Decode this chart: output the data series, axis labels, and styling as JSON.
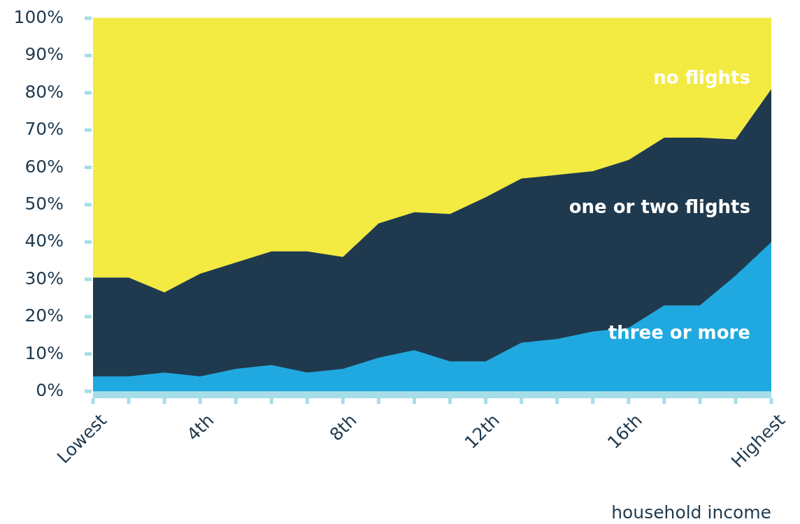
{
  "chart_data": {
    "type": "area",
    "stacked": true,
    "xlabel": "household income",
    "categories": [
      "Lowest",
      null,
      null,
      "4th",
      null,
      null,
      null,
      "8th",
      null,
      null,
      null,
      "12th",
      null,
      null,
      null,
      "16th",
      null,
      null,
      null,
      "Highest"
    ],
    "series": [
      {
        "name": "three or more",
        "color": "#1fa9e0",
        "values": [
          4,
          4,
          5,
          4,
          6,
          7,
          5,
          6,
          9,
          11,
          8,
          8,
          13,
          14,
          16,
          17,
          23,
          23,
          31,
          40
        ]
      },
      {
        "name": "one or two flights",
        "color": "#1f3a4f",
        "values": [
          26.5,
          26.5,
          21.5,
          27.5,
          28.5,
          30.5,
          32.5,
          30,
          36,
          37,
          39.5,
          44,
          44,
          44,
          43,
          45,
          45,
          45,
          36.5,
          41
        ]
      },
      {
        "name": "no flights",
        "color": "#f3ea42",
        "values": [
          69.5,
          69.5,
          73.5,
          68.5,
          65.5,
          62.5,
          62.5,
          64,
          55,
          52,
          52.5,
          48,
          43,
          42,
          41,
          38,
          32,
          32,
          32.5,
          19
        ]
      }
    ],
    "ylim": [
      0,
      100
    ],
    "yticks": [
      {
        "value": 0,
        "label": "0%"
      },
      {
        "value": 10,
        "label": "10%"
      },
      {
        "value": 20,
        "label": "20%"
      },
      {
        "value": 30,
        "label": "30%"
      },
      {
        "value": 40,
        "label": "40%"
      },
      {
        "value": 50,
        "label": "50%"
      },
      {
        "value": 60,
        "label": "60%"
      },
      {
        "value": 70,
        "label": "70%"
      },
      {
        "value": 80,
        "label": "80%"
      },
      {
        "value": 90,
        "label": "90%"
      },
      {
        "value": 100,
        "label": "100%"
      }
    ],
    "grid": false,
    "legend": false
  }
}
